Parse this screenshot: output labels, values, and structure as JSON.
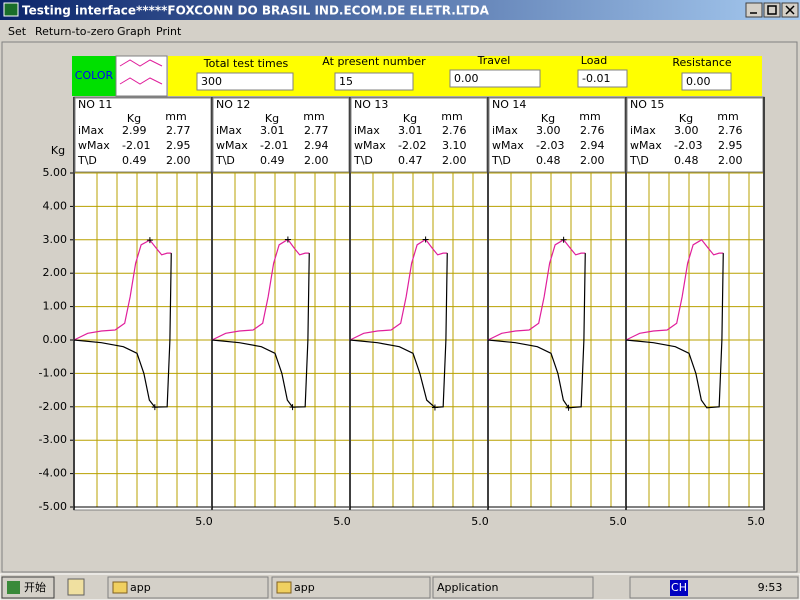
{
  "window": {
    "title": "Testing interface*****FOXCONN DO BRASIL IND.ECOM.DE ELETR.LTDA"
  },
  "menu": [
    "Set",
    "Return-to-zero",
    "Graph",
    "Print"
  ],
  "toolbar": {
    "color_label": "COLOR",
    "fields": [
      {
        "label": "Total test times",
        "value": "300"
      },
      {
        "label": "At present number",
        "value": "15"
      },
      {
        "label": "Travel",
        "value": "0.00"
      },
      {
        "label": "Load",
        "value": "-0.01"
      },
      {
        "label": "Resistance",
        "value": "0.00"
      }
    ]
  },
  "chart_data": {
    "type": "line",
    "y_label": "Kg",
    "xlim": [
      0,
      5
    ],
    "ylim": [
      -5,
      5
    ],
    "grid": true,
    "yticks": [
      {
        "value": 5,
        "label": "5.00"
      },
      {
        "value": 4,
        "label": "4.00"
      },
      {
        "value": 3,
        "label": "3.00"
      },
      {
        "value": 2,
        "label": "2.00"
      },
      {
        "value": 1,
        "label": "1.00"
      },
      {
        "value": 0,
        "label": "0.00"
      },
      {
        "value": -1,
        "label": "-1.00"
      },
      {
        "value": -2,
        "label": "-2.00"
      },
      {
        "value": -3,
        "label": "-3.00"
      },
      {
        "value": -4,
        "label": "-4.00"
      },
      {
        "value": -5,
        "label": "-5.00"
      }
    ],
    "panels": [
      {
        "title": "NO  11",
        "header": [
          "Kg",
          "mm"
        ],
        "rows": [
          [
            "iMax",
            "2.99",
            "2.77"
          ],
          [
            "wMax",
            "-2.01",
            "2.95"
          ],
          [
            "T\\D",
            "0.49",
            "2.00"
          ]
        ],
        "x_label": "5.0",
        "markers": true,
        "series": [
          {
            "color": "#e0209c",
            "x": [
              0,
              0.5,
              1.0,
              1.5,
              1.85,
              2.05,
              2.25,
              2.45,
              2.77,
              3.0,
              3.2,
              3.4,
              3.55
            ],
            "values": [
              0,
              0.2,
              0.27,
              0.3,
              0.5,
              1.3,
              2.3,
              2.85,
              2.99,
              2.75,
              2.55,
              2.6,
              2.6
            ]
          },
          {
            "color": "#000000",
            "x": [
              3.55,
              3.5,
              3.4,
              2.95,
              2.75,
              2.55,
              2.3,
              1.8,
              1.0,
              0
            ],
            "values": [
              2.6,
              0,
              -2.0,
              -2.01,
              -1.8,
              -1.0,
              -0.4,
              -0.2,
              -0.08,
              0
            ]
          }
        ]
      },
      {
        "title": "NO  12",
        "header": [
          "Kg",
          "mm"
        ],
        "rows": [
          [
            "iMax",
            "3.01",
            "2.77"
          ],
          [
            "wMax",
            "-2.01",
            "2.94"
          ],
          [
            "T\\D",
            "0.49",
            "2.00"
          ]
        ],
        "x_label": "5.0",
        "markers": true,
        "series": [
          {
            "color": "#e0209c",
            "x": [
              0,
              0.5,
              1.0,
              1.5,
              1.85,
              2.05,
              2.25,
              2.45,
              2.77,
              3.0,
              3.2,
              3.4,
              3.55
            ],
            "values": [
              0,
              0.2,
              0.27,
              0.3,
              0.5,
              1.3,
              2.3,
              2.85,
              3.01,
              2.75,
              2.55,
              2.6,
              2.6
            ]
          },
          {
            "color": "#000000",
            "x": [
              3.55,
              3.5,
              3.4,
              2.94,
              2.75,
              2.55,
              2.3,
              1.8,
              1.0,
              0
            ],
            "values": [
              2.6,
              0,
              -2.0,
              -2.01,
              -1.8,
              -1.0,
              -0.4,
              -0.2,
              -0.08,
              0
            ]
          }
        ]
      },
      {
        "title": "NO  13",
        "header": [
          "Kg",
          "mm"
        ],
        "rows": [
          [
            "iMax",
            "3.01",
            "2.76"
          ],
          [
            "wMax",
            "-2.02",
            "3.10"
          ],
          [
            "T\\D",
            "0.47",
            "2.00"
          ]
        ],
        "x_label": "5.0",
        "markers": true,
        "series": [
          {
            "color": "#e0209c",
            "x": [
              0,
              0.5,
              1.0,
              1.5,
              1.85,
              2.05,
              2.25,
              2.45,
              2.76,
              3.0,
              3.2,
              3.4,
              3.55
            ],
            "values": [
              0,
              0.2,
              0.27,
              0.3,
              0.5,
              1.3,
              2.3,
              2.85,
              3.01,
              2.75,
              2.55,
              2.6,
              2.6
            ]
          },
          {
            "color": "#000000",
            "x": [
              3.55,
              3.5,
              3.4,
              3.1,
              2.8,
              2.55,
              2.3,
              1.8,
              1.0,
              0
            ],
            "values": [
              2.6,
              0,
              -2.0,
              -2.02,
              -1.8,
              -1.0,
              -0.4,
              -0.2,
              -0.08,
              0
            ]
          }
        ]
      },
      {
        "title": "NO  14",
        "header": [
          "Kg",
          "mm"
        ],
        "rows": [
          [
            "iMax",
            "3.00",
            "2.76"
          ],
          [
            "wMax",
            "-2.03",
            "2.94"
          ],
          [
            "T\\D",
            "0.48",
            "2.00"
          ]
        ],
        "x_label": "5.0",
        "markers": true,
        "series": [
          {
            "color": "#e0209c",
            "x": [
              0,
              0.5,
              1.0,
              1.5,
              1.85,
              2.05,
              2.25,
              2.45,
              2.76,
              3.0,
              3.2,
              3.4,
              3.55
            ],
            "values": [
              0,
              0.2,
              0.27,
              0.3,
              0.5,
              1.3,
              2.3,
              2.85,
              3.0,
              2.75,
              2.55,
              2.6,
              2.6
            ]
          },
          {
            "color": "#000000",
            "x": [
              3.55,
              3.5,
              3.4,
              2.94,
              2.75,
              2.55,
              2.3,
              1.8,
              1.0,
              0
            ],
            "values": [
              2.6,
              0,
              -2.0,
              -2.03,
              -1.8,
              -1.0,
              -0.4,
              -0.2,
              -0.08,
              0
            ]
          }
        ]
      },
      {
        "title": "NO  15",
        "header": [
          "Kg",
          "mm"
        ],
        "rows": [
          [
            "iMax",
            "3.00",
            "2.76"
          ],
          [
            "wMax",
            "-2.03",
            "2.95"
          ],
          [
            "T\\D",
            "0.48",
            "2.00"
          ]
        ],
        "x_label": "5.0",
        "markers": false,
        "series": [
          {
            "color": "#e0209c",
            "x": [
              0,
              0.5,
              1.0,
              1.5,
              1.85,
              2.05,
              2.25,
              2.45,
              2.76,
              3.0,
              3.2,
              3.4,
              3.55
            ],
            "values": [
              0,
              0.2,
              0.27,
              0.3,
              0.5,
              1.3,
              2.3,
              2.85,
              3.0,
              2.75,
              2.55,
              2.6,
              2.6
            ]
          },
          {
            "color": "#000000",
            "x": [
              3.55,
              3.5,
              3.4,
              2.95,
              2.75,
              2.55,
              2.3,
              1.8,
              1.0,
              0
            ],
            "values": [
              2.6,
              0,
              -2.0,
              -2.03,
              -1.8,
              -1.0,
              -0.4,
              -0.2,
              -0.08,
              0
            ]
          }
        ]
      }
    ]
  },
  "taskbar": {
    "start": "开始",
    "tasks": [
      "app",
      "app",
      "Application"
    ],
    "tray": "CH",
    "clock": "9:53"
  }
}
